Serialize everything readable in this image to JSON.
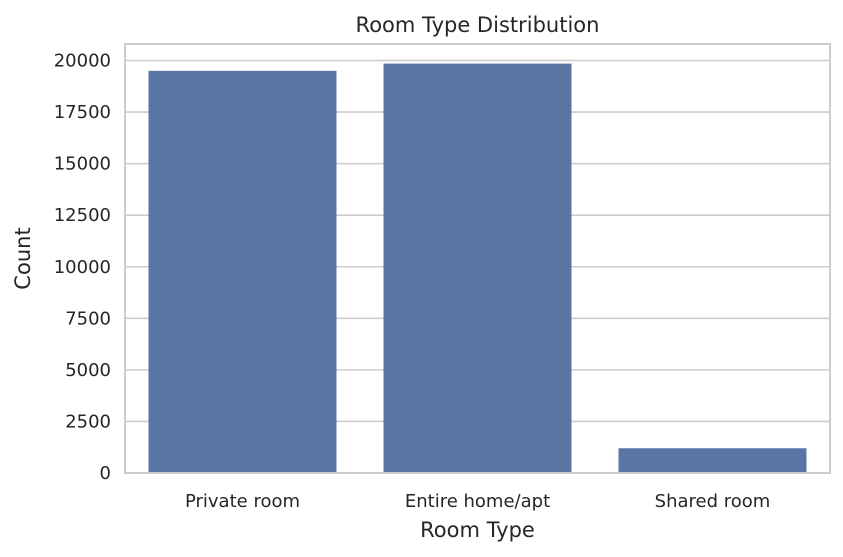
{
  "chart_data": {
    "type": "bar",
    "title": "Room Type Distribution",
    "xlabel": "Room Type",
    "ylabel": "Count",
    "categories": [
      "Private room",
      "Entire home/apt",
      "Shared room"
    ],
    "values": [
      19500,
      19850,
      1200
    ],
    "ylim": [
      0,
      20800
    ],
    "yticks": [
      0,
      2500,
      5000,
      7500,
      10000,
      12500,
      15000,
      17500,
      20000
    ],
    "ytick_labels": [
      "0",
      "2500",
      "5000",
      "7500",
      "10000",
      "12500",
      "15000",
      "17500",
      "20000"
    ],
    "grid": true,
    "bar_color": "#5875a4",
    "grid_color": "#cccccc"
  }
}
